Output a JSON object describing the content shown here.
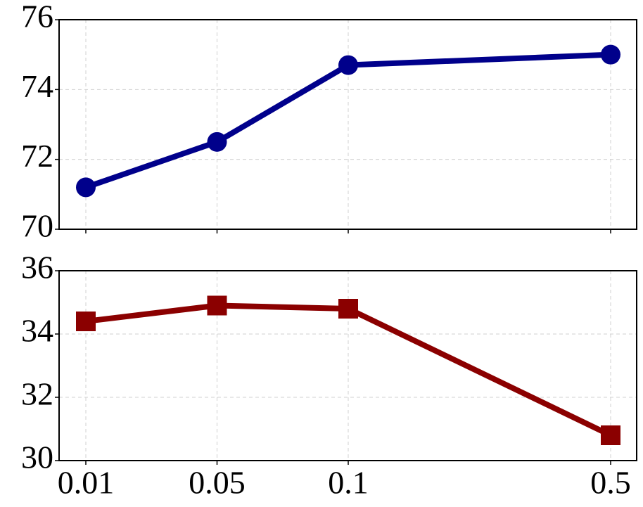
{
  "chart_data": [
    {
      "type": "line",
      "categories": [
        "0.01",
        "0.05",
        "0.1",
        "0.5"
      ],
      "values": [
        71.2,
        72.5,
        74.7,
        75.0
      ],
      "color": "#00008b",
      "marker": "circle",
      "ylim": [
        70,
        76
      ],
      "yticks": [
        70,
        72,
        74,
        76
      ],
      "grid": true
    },
    {
      "type": "line",
      "categories": [
        "0.01",
        "0.05",
        "0.1",
        "0.5"
      ],
      "values": [
        34.4,
        34.9,
        34.8,
        30.8
      ],
      "color": "#8b0000",
      "marker": "square",
      "ylim": [
        30,
        36
      ],
      "yticks": [
        30,
        32,
        34,
        36
      ],
      "grid": true
    }
  ]
}
